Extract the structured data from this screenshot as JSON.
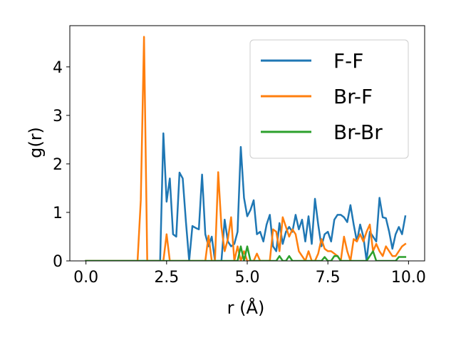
{
  "chart_data": {
    "type": "line",
    "xlabel": "r (Å)",
    "ylabel": "g(r)",
    "xlim": [
      -0.5,
      10.5
    ],
    "ylim": [
      0,
      4.85
    ],
    "xticks": [
      0.0,
      2.5,
      5.0,
      7.5,
      10.0
    ],
    "xtick_labels": [
      "0.0",
      "2.5",
      "5.0",
      "7.5",
      "10.0"
    ],
    "yticks": [
      0,
      1,
      2,
      3,
      4
    ],
    "ytick_labels": [
      "0",
      "1",
      "2",
      "3",
      "4"
    ],
    "grid": false,
    "legend_position": "top-right",
    "x": [
      0.0,
      0.1,
      0.2,
      0.3,
      0.4,
      0.5,
      0.6,
      0.7,
      0.8,
      0.9,
      1.0,
      1.1,
      1.2,
      1.3,
      1.4,
      1.5,
      1.6,
      1.7,
      1.8,
      1.9,
      2.0,
      2.1,
      2.2,
      2.3,
      2.4,
      2.5,
      2.6,
      2.7,
      2.8,
      2.9,
      3.0,
      3.1,
      3.2,
      3.3,
      3.4,
      3.5,
      3.6,
      3.7,
      3.8,
      3.9,
      4.0,
      4.1,
      4.2,
      4.3,
      4.4,
      4.5,
      4.6,
      4.7,
      4.8,
      4.9,
      5.0,
      5.1,
      5.2,
      5.3,
      5.4,
      5.5,
      5.6,
      5.7,
      5.8,
      5.9,
      6.0,
      6.1,
      6.2,
      6.3,
      6.4,
      6.5,
      6.6,
      6.7,
      6.8,
      6.9,
      7.0,
      7.1,
      7.2,
      7.3,
      7.4,
      7.5,
      7.6,
      7.7,
      7.8,
      7.9,
      8.0,
      8.1,
      8.2,
      8.3,
      8.4,
      8.5,
      8.6,
      8.7,
      8.8,
      8.9,
      9.0,
      9.1,
      9.2,
      9.3,
      9.4,
      9.5,
      9.6,
      9.7,
      9.8,
      9.9
    ],
    "series": [
      {
        "name": "F-F",
        "color": "#1f77b4",
        "values": [
          0,
          0,
          0,
          0,
          0,
          0,
          0,
          0,
          0,
          0,
          0,
          0,
          0,
          0,
          0,
          0,
          0,
          0,
          0,
          0,
          0,
          0,
          0,
          0,
          2.63,
          1.22,
          1.7,
          0.55,
          0.5,
          1.82,
          1.7,
          0.8,
          0,
          0.72,
          0.68,
          0.65,
          1.78,
          0.55,
          0.3,
          0.5,
          0,
          0,
          0,
          0.85,
          0.4,
          0.3,
          0.35,
          0.6,
          2.35,
          1.3,
          0.92,
          1.05,
          1.25,
          0.55,
          0.6,
          0.4,
          0.75,
          0.95,
          0.3,
          0.2,
          0.78,
          0.35,
          0.6,
          0.7,
          0.6,
          0.95,
          0.65,
          0.85,
          0.4,
          0.92,
          0.35,
          1.28,
          0.75,
          0.3,
          0.55,
          0.6,
          0.4,
          0.85,
          0.95,
          0.95,
          0.9,
          0.8,
          1.15,
          0.75,
          0.4,
          0.75,
          0.5,
          0,
          0.6,
          0.5,
          0.4,
          1.3,
          0.9,
          0.88,
          0.6,
          0.25,
          0.55,
          0.7,
          0.55,
          0.92
        ]
      },
      {
        "name": "Br-F",
        "color": "#ff7f0e",
        "values": [
          0,
          0,
          0,
          0,
          0,
          0,
          0,
          0,
          0,
          0,
          0,
          0,
          0,
          0,
          0,
          0,
          0,
          1.25,
          4.62,
          0,
          0,
          0,
          0,
          0,
          0,
          0.55,
          0,
          0,
          0,
          0,
          0,
          0,
          0,
          0,
          0,
          0,
          0,
          0,
          0.52,
          0,
          0,
          1.83,
          0.7,
          0.2,
          0.45,
          0.9,
          0,
          0.3,
          0,
          0.2,
          0,
          0,
          0,
          0.15,
          0,
          0,
          0,
          0,
          0.65,
          0.6,
          0.2,
          0.9,
          0.7,
          0.5,
          0.65,
          0.55,
          0.2,
          0.1,
          0,
          0.2,
          0,
          0,
          0.15,
          0.45,
          0.25,
          0.2,
          0.2,
          0.15,
          0.1,
          0,
          0.5,
          0.2,
          0,
          0.45,
          0.4,
          0.55,
          0.4,
          0.6,
          0.75,
          0.2,
          0.35,
          0.2,
          0.1,
          0.3,
          0.2,
          0.1,
          0.1,
          0.2,
          0.3,
          0.35
        ]
      },
      {
        "name": "Br-Br",
        "color": "#2ca02c",
        "values": [
          0,
          0,
          0,
          0,
          0,
          0,
          0,
          0,
          0,
          0,
          0,
          0,
          0,
          0,
          0,
          0,
          0,
          0,
          0,
          0,
          0,
          0,
          0,
          0,
          0,
          0,
          0,
          0,
          0,
          0,
          0,
          0,
          0,
          0,
          0,
          0,
          0,
          0,
          0,
          0,
          0,
          0,
          0,
          0,
          0,
          0,
          0,
          0,
          0.3,
          0,
          0.3,
          0,
          0,
          0,
          0,
          0,
          0,
          0,
          0,
          0,
          0.1,
          0,
          0,
          0.1,
          0,
          0,
          0,
          0,
          0,
          0,
          0,
          0,
          0,
          0,
          0.08,
          0,
          0,
          0.1,
          0.1,
          0,
          0,
          0,
          0,
          0,
          0,
          0,
          0,
          0,
          0.1,
          0.2,
          0,
          0,
          0,
          0,
          0,
          0,
          0,
          0.08,
          0.08,
          0.08
        ]
      }
    ]
  }
}
